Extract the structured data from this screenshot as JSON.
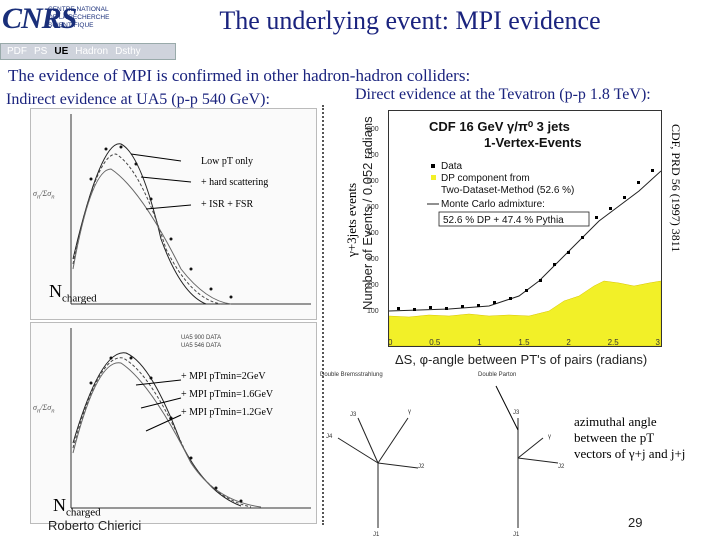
{
  "logo": {
    "mark": "CNRS",
    "lines": [
      "CENTRE NATIONAL",
      "DE LA RECHERCHE",
      "SCIENTIFIQUE"
    ]
  },
  "title": "The underlying event: MPI evidence",
  "nav": {
    "items": [
      "PDF",
      "PS",
      "UE",
      "Hadron",
      "Dsthy"
    ],
    "active": "UE"
  },
  "intro": "The evidence of MPI is confirmed in other hadron-hadron colliders:",
  "indirect": "Indirect evidence at UA5 (p-p 540 GeV):",
  "direct": "Direct evidence at the Tevatron (p-p 1.8 TeV):",
  "ua5_top": {
    "annotations": [
      "Low pT only",
      "+ hard scattering",
      "+ ISR + FSR"
    ],
    "nch_main": "N",
    "nch_sub": "charged"
  },
  "ua5_bottom": {
    "annotations": [
      "+ MPI pTmin=2GeV",
      "+ MPI pTmin=1.6GeV",
      "+ MPI pTmin=1.2GeV"
    ],
    "nch_main": "N",
    "nch_sub": "charged"
  },
  "cdf": {
    "title_line1": "CDF 16 GeV γ/π⁰ 3 jets",
    "title_line2": "1-Vertex-Events",
    "legend": [
      "Data",
      "DP component from",
      "Two-Dataset-Method (52.6 %)",
      "Monte Carlo admixture:",
      "52.6 % DP + 47.4 % Pythia"
    ],
    "ylabel": "Number of Events / 0.052 radians",
    "xlabel": "ΔS, φ-angle between PT's of pairs (radians)",
    "side_label": "γ+3jets events",
    "reference": "CDF, PRD 56 (1997) 3811",
    "yticks": [
      "800",
      "700",
      "600",
      "500",
      "400",
      "300",
      "200",
      "100",
      "0"
    ],
    "xticks": [
      "0",
      "0.5",
      "1",
      "1.5",
      "2",
      "2.5",
      "3"
    ]
  },
  "diagram": {
    "left_label": "Double Bremsstrahlung",
    "right_label": "Double Parton"
  },
  "azimuthal": [
    "azimuthal angle",
    "between the pT",
    "vectors of γ+j and j+j"
  ],
  "footer": {
    "author": "Roberto Chierici",
    "page": "29"
  },
  "colors": {
    "title": "#1a237e",
    "dp_fill": "#f2f028",
    "logo": "#1a2f7a"
  }
}
